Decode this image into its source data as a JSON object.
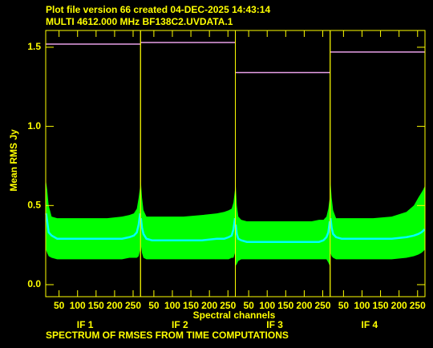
{
  "chart_data": {
    "type": "band",
    "title": "Plot file version 66  created 04-DEC-2025 14:43:14",
    "subtitle": "MULTI 4612.000 MHz  BF138C2.UVDATA.1",
    "ylabel": "Mean RMS Jy",
    "xlabel": "Spectral channels",
    "footer": "SPECTRUM OF RMSES FROM TIME COMPUTATIONS",
    "ylim": [
      -0.076,
      1.606
    ],
    "yticks": [
      {
        "value": 0,
        "label": "0.0"
      },
      {
        "value": 0.5,
        "label": "0.5"
      },
      {
        "value": 1,
        "label": "1.0"
      },
      {
        "value": 1.5,
        "label": "1.5"
      }
    ],
    "xlim": [
      14,
      270
    ],
    "xticks": [
      50,
      100,
      150,
      200,
      250
    ],
    "x": [
      15,
      18,
      22,
      30,
      45,
      80,
      130,
      180,
      220,
      240,
      252,
      260,
      265,
      269
    ],
    "band_color": "#00ff00",
    "mean_color": "#00ffff",
    "level_color": "#e8a0e8",
    "panels": [
      {
        "label": "IF 1",
        "level": 1.52,
        "upper": [
          0.65,
          0.6,
          0.5,
          0.43,
          0.42,
          0.42,
          0.42,
          0.42,
          0.43,
          0.44,
          0.45,
          0.48,
          0.55,
          0.62
        ],
        "mean": [
          0.45,
          0.4,
          0.33,
          0.31,
          0.29,
          0.29,
          0.29,
          0.29,
          0.29,
          0.3,
          0.31,
          0.33,
          0.38,
          0.45
        ],
        "lower": [
          0.22,
          0.2,
          0.18,
          0.17,
          0.16,
          0.16,
          0.16,
          0.16,
          0.16,
          0.17,
          0.17,
          0.17,
          0.18,
          0.22
        ]
      },
      {
        "label": "IF 2",
        "level": 1.53,
        "upper": [
          0.65,
          0.55,
          0.47,
          0.43,
          0.43,
          0.43,
          0.43,
          0.44,
          0.45,
          0.46,
          0.47,
          0.48,
          0.52,
          0.6
        ],
        "mean": [
          0.42,
          0.36,
          0.32,
          0.29,
          0.28,
          0.28,
          0.28,
          0.28,
          0.29,
          0.29,
          0.3,
          0.31,
          0.35,
          0.42
        ],
        "lower": [
          0.25,
          0.2,
          0.17,
          0.16,
          0.16,
          0.16,
          0.16,
          0.16,
          0.16,
          0.16,
          0.16,
          0.17,
          0.17,
          0.2
        ]
      },
      {
        "label": "IF 3",
        "level": 1.34,
        "upper": [
          0.63,
          0.5,
          0.43,
          0.41,
          0.4,
          0.4,
          0.4,
          0.4,
          0.4,
          0.41,
          0.41,
          0.43,
          0.48,
          0.55
        ],
        "mean": [
          0.38,
          0.32,
          0.29,
          0.28,
          0.27,
          0.27,
          0.27,
          0.27,
          0.27,
          0.27,
          0.28,
          0.3,
          0.33,
          0.4
        ],
        "lower": [
          0.12,
          0.13,
          0.15,
          0.16,
          0.16,
          0.16,
          0.16,
          0.16,
          0.16,
          0.16,
          0.16,
          0.16,
          0.14,
          0.12
        ]
      },
      {
        "label": "IF 4",
        "level": 1.47,
        "upper": [
          0.65,
          0.55,
          0.47,
          0.42,
          0.42,
          0.42,
          0.42,
          0.43,
          0.46,
          0.5,
          0.55,
          0.58,
          0.6,
          0.62
        ],
        "mean": [
          0.42,
          0.36,
          0.32,
          0.3,
          0.29,
          0.29,
          0.29,
          0.29,
          0.3,
          0.31,
          0.32,
          0.33,
          0.34,
          0.35
        ],
        "lower": [
          0.2,
          0.18,
          0.17,
          0.16,
          0.16,
          0.16,
          0.16,
          0.16,
          0.17,
          0.18,
          0.19,
          0.2,
          0.21,
          0.22
        ]
      }
    ]
  }
}
